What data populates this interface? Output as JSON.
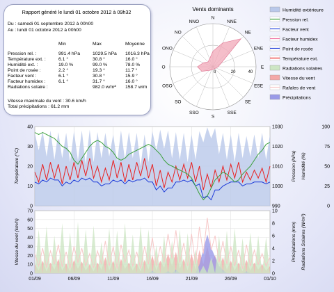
{
  "report": {
    "title": "Rapport généré le lundi 01 octobre 2012 à 09h32",
    "period_from": "Du : samedi 01 septembre 2012 à 00h00",
    "period_to": "Au : lundi 01 octobre 2012 à 00h00",
    "col_headers": [
      "Min",
      "Max",
      "Moyenne"
    ],
    "rows": [
      {
        "label": "Pression rel. :",
        "min": "991.4 hPa",
        "max": "1029.5 hPa",
        "avg": "1016.3 hPa"
      },
      {
        "label": "Température ext. :",
        "min": "6.1 °",
        "max": "30.8 °",
        "avg": "16.0 °"
      },
      {
        "label": "Humidité ext. :",
        "min": "19.0 %",
        "max": "99.0 %",
        "avg": "78.0 %"
      },
      {
        "label": "Point de rosée :",
        "min": "2.2 °",
        "max": "19.3 °",
        "avg": "11.7 °"
      },
      {
        "label": "Facteur vent :",
        "min": "6.1 °",
        "max": "30.8 °",
        "avg": "15.9 °"
      },
      {
        "label": "Facteur humidex :",
        "min": "6.1 °",
        "max": "31.7 °",
        "avg": "16.0 °"
      },
      {
        "label": "Radiations solaire :",
        "min": "",
        "max": "982.0 w/m²",
        "avg": "158.7 w/m"
      }
    ],
    "max_wind": "Vitesse maximale du vent : 30.6 km/h",
    "total_precip": "Total précipitations : 61.2 mm"
  },
  "rose": {
    "title": "Vents dominants",
    "directions": [
      "N",
      "NNE",
      "NE",
      "ENE",
      "E",
      "ESE",
      "SE",
      "SSE",
      "S",
      "SSO",
      "SO",
      "OSO",
      "O",
      "ONO",
      "NO",
      "NNO"
    ],
    "radial_ticks": [
      "0",
      "20",
      "40"
    ],
    "values": [
      18,
      30,
      46,
      10,
      6,
      4,
      3,
      3,
      3,
      4,
      6,
      14,
      18,
      12,
      8,
      10
    ],
    "rmax": 50
  },
  "legend": [
    {
      "label": "Humidité extérieure",
      "type": "fill",
      "color": "#b9c8ea"
    },
    {
      "label": "Pression rel.",
      "type": "line",
      "color": "#3aa03a"
    },
    {
      "label": "Facteur vent",
      "type": "line",
      "color": "#2a4adf"
    },
    {
      "label": "Facteur humidex",
      "type": "line",
      "color": "#f07aa8"
    },
    {
      "label": "Point de rosée",
      "type": "line",
      "color": "#1c3ad8"
    },
    {
      "label": "Température ext.",
      "type": "line",
      "color": "#e82020"
    },
    {
      "label": "Radiations solaires",
      "type": "fill",
      "color": "#cde6c4"
    },
    {
      "label": "Vitesse du vent",
      "type": "fill",
      "color": "#f4a8a8"
    },
    {
      "label": "Rafales de vent",
      "type": "line",
      "color": "#f7c8c8"
    },
    {
      "label": "Précipitations",
      "type": "fill",
      "color": "#9a9ae8"
    }
  ],
  "chart_data": [
    {
      "type": "line",
      "x_ticks": [
        "01/09",
        "06/09",
        "11/09",
        "16/09",
        "21/09",
        "26/09",
        "01/10"
      ],
      "ylabel": "Température (°C)",
      "y2label": "Pression (hPa)",
      "y3label": "Humidité (%)",
      "ylim": [
        0,
        40
      ],
      "y_ticks": [
        0,
        10,
        20,
        30,
        40
      ],
      "y2lim": [
        990,
        1030
      ],
      "y2_ticks": [
        990,
        1000,
        1010,
        1020,
        1030
      ],
      "y3lim": [
        0,
        100
      ],
      "y3_ticks": [
        0,
        25,
        50,
        75,
        100
      ],
      "series": [
        {
          "name": "Température ext.",
          "axis": "left",
          "values": [
            17,
            12,
            21,
            13,
            22,
            14,
            21,
            11,
            20,
            13,
            22,
            14,
            23,
            15,
            24,
            14,
            20,
            12,
            19,
            13,
            23,
            14,
            22,
            12,
            21,
            13,
            22,
            15,
            24,
            14,
            21,
            10,
            18,
            9,
            17,
            12,
            20,
            13,
            21,
            14,
            22,
            12,
            20,
            8,
            16,
            9,
            18,
            12,
            20,
            13,
            21,
            14,
            22,
            12,
            17,
            13,
            18,
            14,
            19,
            12,
            20
          ]
        },
        {
          "name": "Point de rosée",
          "axis": "left",
          "values": [
            12,
            11,
            13,
            12,
            14,
            13,
            13,
            10,
            12,
            11,
            13,
            12,
            14,
            13,
            14,
            12,
            12,
            10,
            11,
            11,
            13,
            12,
            13,
            11,
            13,
            12,
            13,
            13,
            14,
            12,
            12,
            8,
            10,
            7,
            9,
            9,
            12,
            12,
            13,
            12,
            13,
            10,
            11,
            4,
            5,
            3,
            8,
            8,
            10,
            11,
            12,
            12,
            12,
            10,
            11,
            11,
            12,
            12,
            12,
            11,
            12
          ]
        },
        {
          "name": "Pression rel.",
          "axis": "right",
          "values": [
            1027,
            1026,
            1027,
            1026,
            1025,
            1024,
            1022,
            1020,
            1019,
            1017,
            1013,
            1011,
            1014,
            1017,
            1020,
            1022,
            1023,
            1022,
            1020,
            1019,
            1017,
            1014,
            1013,
            1014,
            1016,
            1017,
            1018,
            1019,
            1020,
            1021,
            1020,
            1018,
            1016,
            1013,
            1011,
            1010,
            1009,
            1008,
            1007,
            1006,
            1004,
            1000,
            996,
            993,
            995,
            999,
            1003,
            1005,
            1007,
            1006,
            1004,
            1002,
            1003,
            1006,
            1008,
            1010,
            1013,
            1016,
            1018,
            1021,
            1022
          ]
        },
        {
          "name": "Humidité extérieure",
          "axis": "humidity",
          "values": [
            92,
            70,
            94,
            62,
            95,
            58,
            93,
            60,
            92,
            55,
            94,
            57,
            95,
            52,
            96,
            55,
            93,
            60,
            92,
            62,
            90,
            55,
            95,
            58,
            93,
            60,
            92,
            50,
            90,
            55,
            94,
            70,
            96,
            72,
            95,
            60,
            93,
            58,
            92,
            55,
            90,
            58,
            94,
            80,
            99,
            85,
            98,
            65,
            92,
            58,
            90,
            55,
            92,
            60,
            88,
            62,
            90,
            60,
            92,
            58,
            90
          ]
        }
      ]
    },
    {
      "type": "area",
      "x_ticks": [
        "01/09",
        "06/09",
        "11/09",
        "16/09",
        "21/09",
        "26/09",
        "01/10"
      ],
      "ylabel": "Vitesse du vent (km/h)",
      "y2label": "Précipitations (mm)",
      "y3label": "Radiations Solaires (W/m²)",
      "ylim": [
        0,
        70
      ],
      "y_ticks": [
        0,
        10,
        20,
        30,
        40,
        50,
        60,
        70
      ],
      "y2lim": [
        0,
        10
      ],
      "y2_ticks": [
        0,
        2,
        4,
        6,
        8,
        10
      ],
      "y3lim": [
        0,
        1000
      ],
      "series": [
        {
          "name": "Vitesse du vent",
          "axis": "left",
          "values": [
            10,
            3,
            14,
            2,
            12,
            4,
            16,
            3,
            11,
            2,
            15,
            5,
            13,
            3,
            10,
            2,
            12,
            4,
            18,
            3,
            14,
            2,
            16,
            5,
            12,
            3,
            11,
            2,
            15,
            4,
            20,
            3,
            14,
            6,
            22,
            8,
            24,
            5,
            16,
            3,
            22,
            4,
            26,
            10,
            30,
            12,
            20,
            5,
            18,
            4,
            14,
            3,
            12,
            2,
            15,
            3,
            12,
            4,
            10,
            3,
            8
          ]
        },
        {
          "name": "Rafales de vent",
          "axis": "left",
          "values": [
            22,
            8,
            28,
            6,
            25,
            10,
            32,
            7,
            24,
            5,
            30,
            12,
            28,
            8,
            22,
            6,
            25,
            10,
            36,
            8,
            30,
            5,
            32,
            12,
            26,
            8,
            24,
            5,
            30,
            10,
            40,
            8,
            30,
            12,
            44,
            16,
            48,
            12,
            34,
            8,
            44,
            10,
            52,
            22,
            62,
            26,
            42,
            12,
            36,
            10,
            30,
            8,
            26,
            5,
            32,
            8,
            26,
            10,
            22,
            8,
            18
          ]
        },
        {
          "name": "Précipitations",
          "axis": "right",
          "values": [
            0,
            0,
            0,
            0,
            0,
            0,
            0,
            0,
            0,
            0,
            0,
            0,
            0,
            0,
            0,
            0,
            0,
            0,
            0,
            0,
            0,
            0,
            0,
            0,
            0,
            0,
            0,
            0,
            0,
            0,
            0.4,
            0,
            0,
            0,
            0.3,
            0,
            0.6,
            0,
            0,
            0,
            0,
            0,
            1.4,
            3.8,
            6.2,
            4.1,
            2.6,
            1.2,
            0.5,
            0,
            0,
            0,
            0,
            0,
            0.3,
            0,
            0,
            0,
            0,
            0,
            0
          ]
        },
        {
          "name": "Radiations solaires",
          "axis": "radiation",
          "values": [
            0,
            700,
            0,
            750,
            0,
            600,
            0,
            800,
            0,
            650,
            0,
            820,
            0,
            700,
            0,
            760,
            0,
            500,
            0,
            720,
            0,
            680,
            0,
            800,
            0,
            620,
            0,
            760,
            0,
            700,
            0,
            450,
            0,
            600,
            0,
            520,
            0,
            700,
            0,
            640,
            0,
            380,
            0,
            120,
            0,
            250,
            0,
            600,
            0,
            680,
            0,
            720,
            0,
            560,
            0,
            650,
            0,
            600,
            0,
            580,
            0
          ]
        }
      ]
    }
  ]
}
